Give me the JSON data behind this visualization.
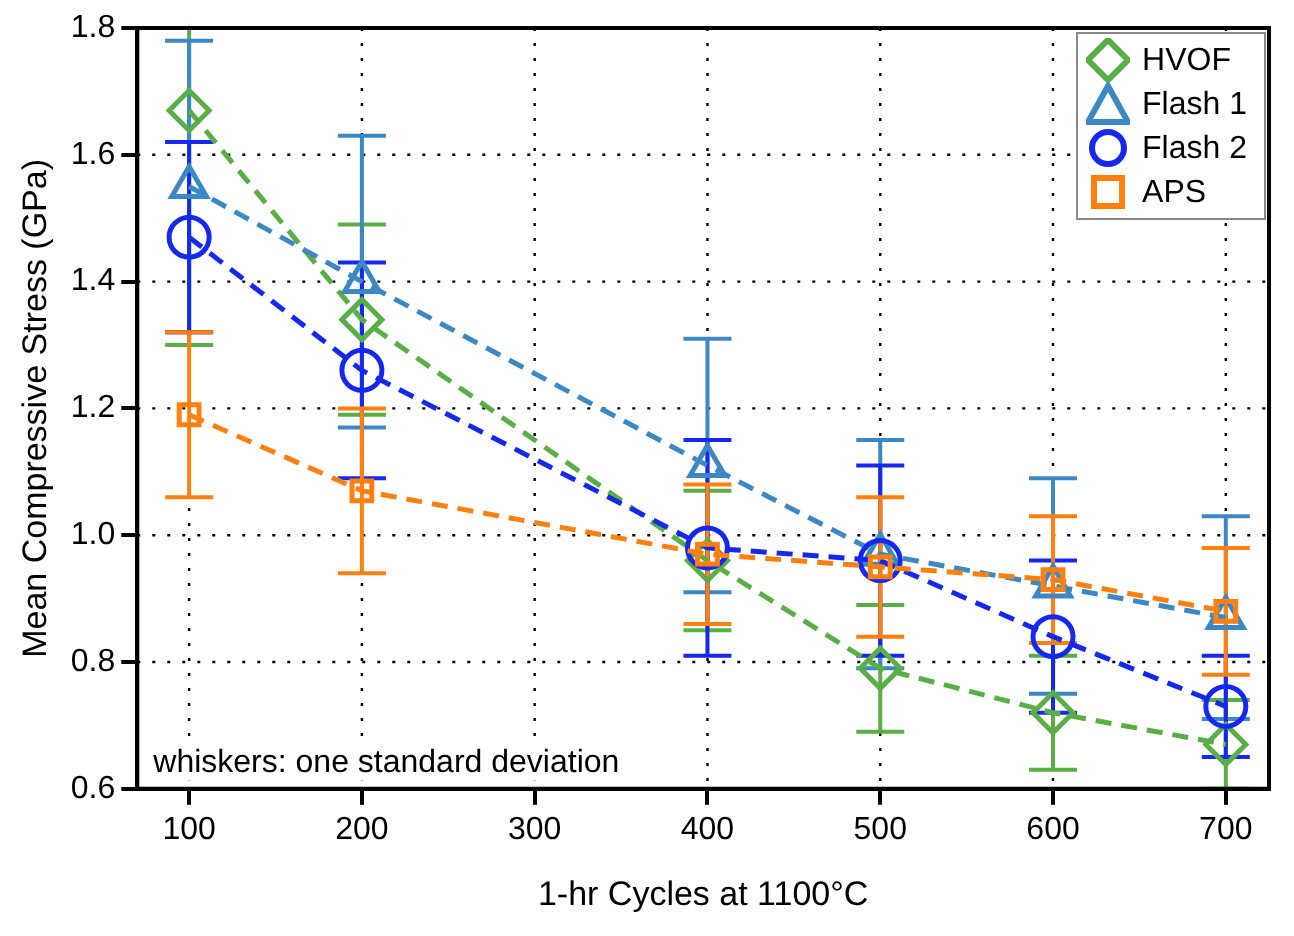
{
  "chart_data": {
    "type": "line",
    "xlabel": "1-hr Cycles at 1100°C",
    "ylabel": "Mean Compressive Stress (GPa)",
    "x": [
      100,
      200,
      400,
      500,
      600,
      700
    ],
    "xlim": [
      70,
      725
    ],
    "xticks": [
      100,
      200,
      300,
      400,
      500,
      600,
      700
    ],
    "ylim": [
      0.6,
      1.8
    ],
    "yticks": [
      {
        "value": 0.6,
        "label": "0.6"
      },
      {
        "value": 0.8,
        "label": "0.8"
      },
      {
        "value": 1.0,
        "label": "1.0"
      },
      {
        "value": 1.2,
        "label": "1.2"
      },
      {
        "value": 1.4,
        "label": "1.4"
      },
      {
        "value": 1.6,
        "label": "1.6"
      },
      {
        "value": 1.8,
        "label": "1.8"
      }
    ],
    "grid": true,
    "legend": "top right",
    "line_style": "dashed",
    "annotations": [
      "whiskers: one standard deviation"
    ],
    "series": [
      {
        "name": "HVOF",
        "color": "#5aae46",
        "marker": "diamond",
        "values": [
          1.67,
          1.34,
          0.96,
          0.79,
          0.72,
          0.67
        ],
        "errors": [
          [
            1.3,
            1.8
          ],
          0.15,
          0.11,
          0.1,
          0.09,
          0.07
        ]
      },
      {
        "name": "Flash 1",
        "color": "#3c88c4",
        "marker": "triangle",
        "values": [
          1.55,
          1.4,
          1.11,
          0.97,
          0.92,
          0.87
        ],
        "errors": [
          0.23,
          0.23,
          0.2,
          0.18,
          0.17,
          0.16
        ]
      },
      {
        "name": "Flash 2",
        "color": "#1428f0",
        "marker": "circle",
        "values": [
          1.47,
          1.26,
          0.98,
          0.96,
          0.84,
          0.73
        ],
        "errors": [
          0.15,
          0.17,
          0.17,
          0.15,
          0.12,
          0.08
        ]
      },
      {
        "name": "APS",
        "color": "#ff8010",
        "marker": "square",
        "values": [
          1.19,
          1.07,
          0.97,
          0.95,
          0.93,
          0.88
        ],
        "errors": [
          0.13,
          0.13,
          0.11,
          0.11,
          0.1,
          0.1
        ]
      }
    ]
  }
}
